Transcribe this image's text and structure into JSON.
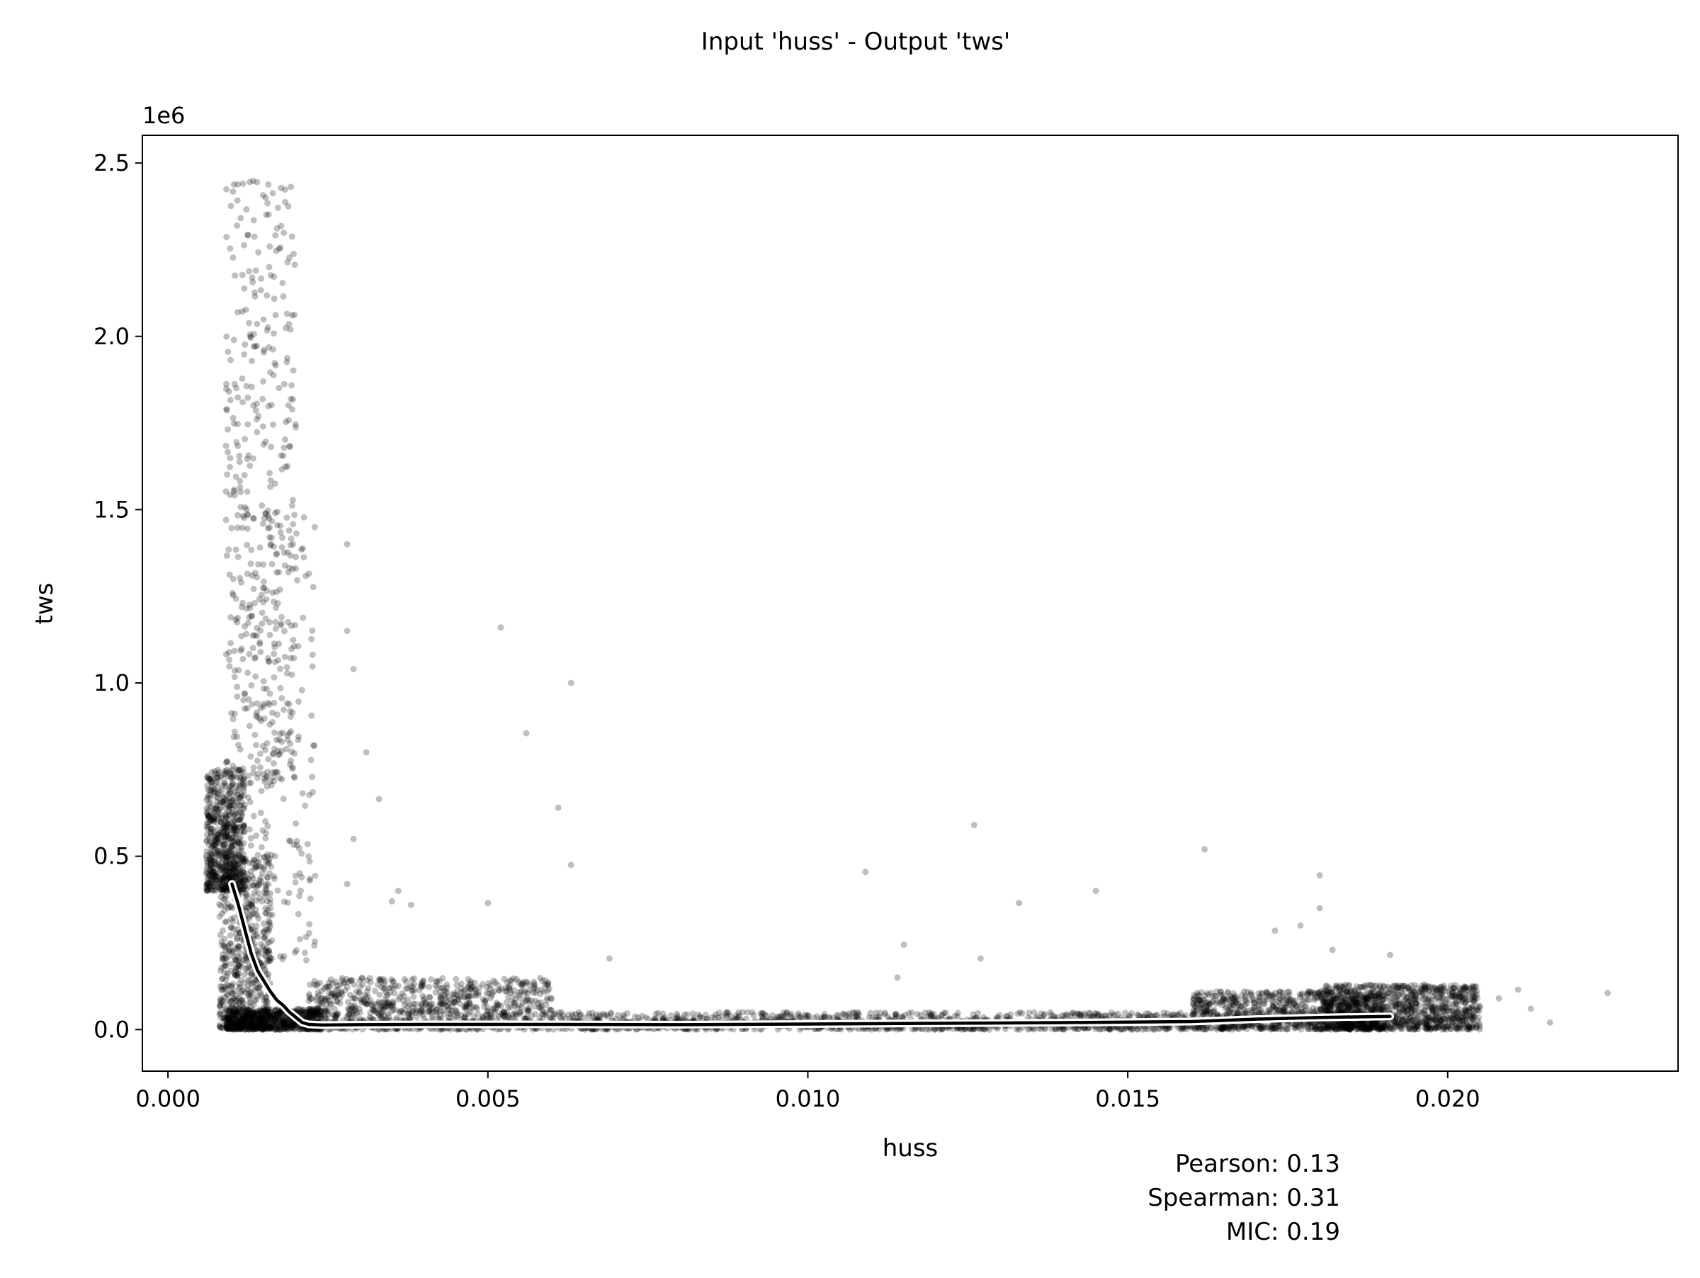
{
  "chart_data": {
    "type": "scatter",
    "title": "Input 'huss' - Output 'tws'",
    "xlabel": "huss",
    "ylabel": "tws",
    "y_offset_label": "1e6",
    "xlim": [
      -0.0004,
      0.0236
    ],
    "ylim": [
      -120000,
      2580000
    ],
    "x_ticks": [
      0.0,
      0.005,
      0.01,
      0.015,
      0.02
    ],
    "x_tick_labels": [
      "0.000",
      "0.005",
      "0.010",
      "0.015",
      "0.020"
    ],
    "y_ticks": [
      0,
      500000,
      1000000,
      1500000,
      2000000,
      2500000
    ],
    "y_tick_labels": [
      "0.0",
      "0.5",
      "1.0",
      "1.5",
      "2.0",
      "2.5"
    ],
    "grid": false,
    "marker_color": "#000000",
    "marker_alpha": 0.25,
    "trend_line_color": "#000000",
    "trend_line_halo_color": "#ffffff",
    "scatter_clusters": [
      {
        "x_range": [
          0.0006,
          0.0012
        ],
        "y_range": [
          400000,
          750000
        ],
        "count": 650
      },
      {
        "x_range": [
          0.0008,
          0.0016
        ],
        "y_range": [
          0,
          500000
        ],
        "count": 600
      },
      {
        "x_range": [
          0.0009,
          0.0024
        ],
        "y_range": [
          0,
          60000
        ],
        "count": 700
      },
      {
        "x_range": [
          0.0009,
          0.002
        ],
        "y_range": [
          700000,
          2450000
        ],
        "count": 420
      },
      {
        "x_range": [
          0.0012,
          0.0023
        ],
        "y_range": [
          200000,
          1500000
        ],
        "count": 180
      },
      {
        "x_range": [
          0.0022,
          0.006
        ],
        "y_range": [
          0,
          150000
        ],
        "count": 900
      },
      {
        "x_range": [
          0.006,
          0.016
        ],
        "y_range": [
          0,
          50000
        ],
        "count": 1100
      },
      {
        "x_range": [
          0.016,
          0.019
        ],
        "y_range": [
          0,
          110000
        ],
        "count": 900
      },
      {
        "x_range": [
          0.018,
          0.0205
        ],
        "y_range": [
          0,
          130000
        ],
        "count": 1000
      }
    ],
    "outliers": [
      [
        0.0028,
        1400000
      ],
      [
        0.0028,
        1150000
      ],
      [
        0.0029,
        1040000
      ],
      [
        0.0052,
        1160000
      ],
      [
        0.0063,
        1000000
      ],
      [
        0.0056,
        855000
      ],
      [
        0.0031,
        800000
      ],
      [
        0.0061,
        640000
      ],
      [
        0.0033,
        665000
      ],
      [
        0.0029,
        550000
      ],
      [
        0.0063,
        475000
      ],
      [
        0.0028,
        420000
      ],
      [
        0.0036,
        400000
      ],
      [
        0.0038,
        360000
      ],
      [
        0.0035,
        370000
      ],
      [
        0.005,
        365000
      ],
      [
        0.0069,
        205000
      ],
      [
        0.0109,
        455000
      ],
      [
        0.0126,
        590000
      ],
      [
        0.0133,
        365000
      ],
      [
        0.0145,
        400000
      ],
      [
        0.0162,
        520000
      ],
      [
        0.0115,
        245000
      ],
      [
        0.0127,
        205000
      ],
      [
        0.018,
        445000
      ],
      [
        0.018,
        350000
      ],
      [
        0.0177,
        300000
      ],
      [
        0.0173,
        285000
      ],
      [
        0.0182,
        230000
      ],
      [
        0.0191,
        215000
      ],
      [
        0.0225,
        105000
      ],
      [
        0.0216,
        20000
      ],
      [
        0.0213,
        60000
      ],
      [
        0.0211,
        115000
      ],
      [
        0.0208,
        90000
      ],
      [
        0.0114,
        150000
      ]
    ],
    "trend_line": {
      "x": [
        0.001,
        0.0011,
        0.0012,
        0.0013,
        0.0014,
        0.0015,
        0.0016,
        0.0017,
        0.0018,
        0.0019,
        0.002,
        0.0021,
        0.0022,
        0.0024,
        0.003,
        0.004,
        0.006,
        0.008,
        0.01,
        0.012,
        0.014,
        0.016,
        0.017,
        0.018,
        0.0191
      ],
      "y": [
        420000,
        360000,
        290000,
        220000,
        170000,
        140000,
        110000,
        85000,
        70000,
        50000,
        35000,
        20000,
        15000,
        13000,
        14000,
        15000,
        15000,
        14000,
        16000,
        18000,
        20000,
        23000,
        30000,
        35000,
        38000
      ]
    },
    "annotations": [
      "Pearson: 0.13",
      "Spearman: 0.31",
      "MIC: 0.19"
    ]
  }
}
